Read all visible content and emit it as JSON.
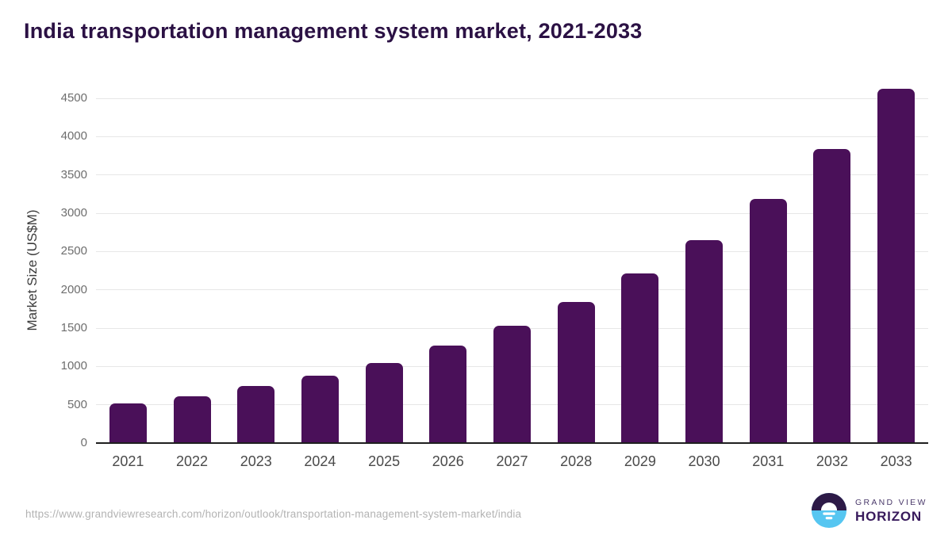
{
  "header": {
    "title": "India transportation management system market, 2021-2033"
  },
  "chart_data": {
    "type": "bar",
    "title": "India transportation management system market, 2021-2033",
    "xlabel": "",
    "ylabel": "Market Size (US$M)",
    "categories": [
      "2021",
      "2022",
      "2023",
      "2024",
      "2025",
      "2026",
      "2027",
      "2028",
      "2029",
      "2030",
      "2031",
      "2032",
      "2033"
    ],
    "values": [
      515,
      615,
      740,
      880,
      1045,
      1275,
      1535,
      1840,
      2210,
      2650,
      3190,
      3835,
      4625
    ],
    "ylim": [
      0,
      4500
    ],
    "yticks": [
      0,
      500,
      1000,
      1500,
      2000,
      2500,
      3000,
      3500,
      4000,
      4500
    ],
    "grid": "horizontal",
    "legend": "none",
    "bar_color": "#4a1059",
    "note": "topmost bar exceeds highest gridline"
  },
  "footer": {
    "source_url": "https://www.grandviewresearch.com/horizon/outlook/transportation-management-system-market/india",
    "logo": {
      "line1": "GRAND VIEW",
      "line2": "HORIZON",
      "icon": "horizon-sun-icon",
      "colors": {
        "dark_purple": "#2d1a47",
        "light_blue": "#56c6f1",
        "text_dark": "#381a5c"
      }
    }
  }
}
